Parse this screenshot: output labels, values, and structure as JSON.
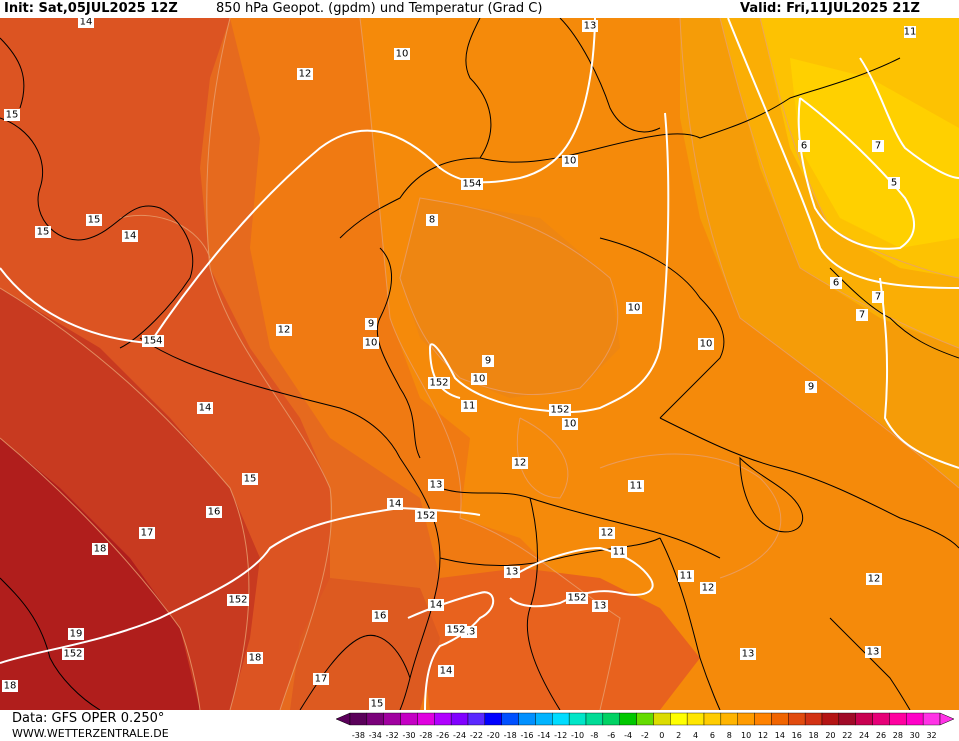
{
  "header": {
    "init": "Init: Sat,05JUL2025 12Z",
    "title": "850 hPa Geopot. (gpdm) und Temperatur (Grad C)",
    "valid": "Valid: Fri,11JUL2025 21Z"
  },
  "footer": {
    "model": "Data: GFS OPER 0.250°",
    "site": "WWW.WETTERZENTRALE.DE"
  },
  "legend": {
    "ticks": [
      "-38",
      "-34",
      "-32",
      "-30",
      "-28",
      "-26",
      "-24",
      "-22",
      "-20",
      "-18",
      "-16",
      "-14",
      "-12",
      "-10",
      "-8",
      "-6",
      "-4",
      "-2",
      "0",
      "2",
      "4",
      "6",
      "8",
      "10",
      "12",
      "14",
      "16",
      "18",
      "20",
      "22",
      "24",
      "26",
      "28",
      "30",
      "32"
    ],
    "colors": [
      "#5a005a",
      "#7a007a",
      "#a000a0",
      "#c400c4",
      "#e000e0",
      "#b000ff",
      "#8000ff",
      "#5a28ff",
      "#0000ff",
      "#0050ff",
      "#0090ff",
      "#00b4ff",
      "#00dcff",
      "#00e6c8",
      "#00dc96",
      "#00d264",
      "#00c800",
      "#64dc00",
      "#dcdc00",
      "#ffff00",
      "#ffe600",
      "#ffcc00",
      "#ffb400",
      "#ff9b00",
      "#ff8200",
      "#f06400",
      "#e14b0f",
      "#d23214",
      "#b41414",
      "#a00a28",
      "#c80050",
      "#e60078",
      "#ff00a0",
      "#ff00c8",
      "#ff32e6"
    ]
  },
  "contour_labels_temp": [
    "14",
    "12",
    "10",
    "13",
    "15",
    "15",
    "14",
    "15",
    "8",
    "9",
    "10",
    "12",
    "9",
    "10",
    "10",
    "14",
    "11",
    "15",
    "12",
    "13",
    "16",
    "17",
    "18",
    "14",
    "12",
    "11",
    "11",
    "13",
    "11",
    "12",
    "13",
    "16",
    "14",
    "14",
    "13",
    "13",
    "17",
    "18",
    "15",
    "18",
    "19",
    "13",
    "12",
    "11",
    "7",
    "6",
    "5",
    "7",
    "6",
    "7",
    "5",
    "9",
    "8"
  ],
  "contour_labels_geopot": [
    "154",
    "154",
    "152",
    "152",
    "152",
    "152",
    "152",
    "152",
    "152",
    "152"
  ]
}
